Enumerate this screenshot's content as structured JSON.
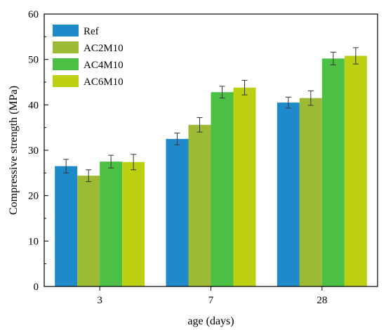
{
  "chart_data": {
    "type": "bar",
    "title": "",
    "xlabel": "age (days)",
    "ylabel": "Compressive strength (MPa)",
    "ylim": [
      0,
      60
    ],
    "yticks": [
      0,
      10,
      20,
      30,
      40,
      50,
      60
    ],
    "categories": [
      "3",
      "7",
      "28"
    ],
    "legend_position": "top-left",
    "grid": false,
    "series": [
      {
        "name": "Ref",
        "color": "#1f8ac9",
        "values": [
          26.5,
          32.5,
          40.5
        ],
        "errors": [
          1.5,
          1.3,
          1.2
        ]
      },
      {
        "name": "AC2M10",
        "color": "#9dba35",
        "values": [
          24.4,
          35.6,
          41.5
        ],
        "errors": [
          1.3,
          1.6,
          1.6
        ]
      },
      {
        "name": "AC4M10",
        "color": "#4cbf45",
        "values": [
          27.5,
          42.8,
          50.2
        ],
        "errors": [
          1.4,
          1.3,
          1.4
        ]
      },
      {
        "name": "AC6M10",
        "color": "#bccf10",
        "values": [
          27.4,
          43.8,
          50.8
        ],
        "errors": [
          1.7,
          1.6,
          1.8
        ]
      }
    ]
  }
}
